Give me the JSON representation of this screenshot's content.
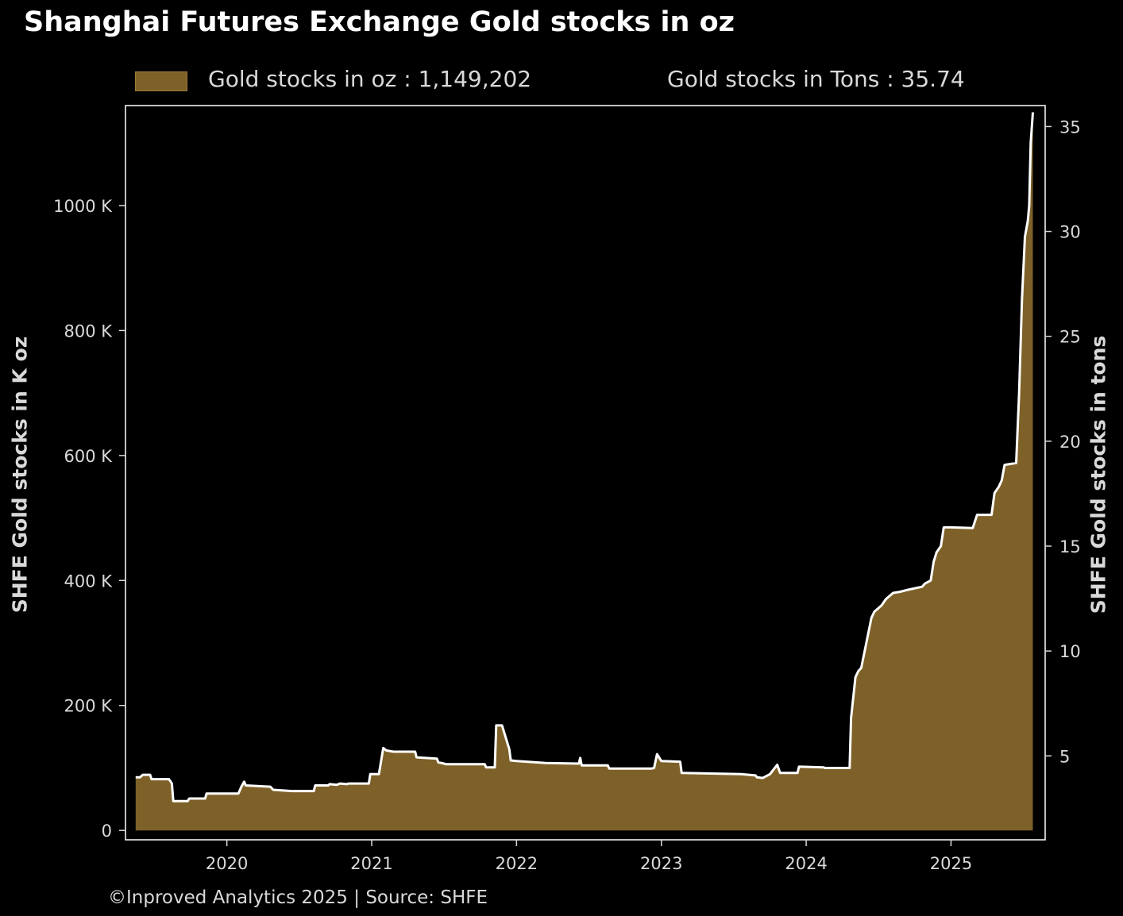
{
  "title": "Shanghai Futures Exchange Gold stocks in oz",
  "legend": {
    "oz_label": "Gold stocks in oz : 1,149,202",
    "tons_label": "Gold stocks in Tons : 35.74"
  },
  "footer": {
    "source": "©Inproved Analytics 2025 | Source: SHFE"
  },
  "colors": {
    "background": "#000000",
    "fill": "#7d6128",
    "line": "#ffffff",
    "text": "#d9d9d9"
  },
  "chart_data": {
    "type": "area",
    "title": "Shanghai Futures Exchange Gold stocks in oz",
    "ylabel": "SHFE Gold stocks in K oz",
    "ylabel_right": "SHFE Gold stocks in tons",
    "ylim": [
      -15000,
      1160000
    ],
    "ylim_right": [
      1.0,
      36.0
    ],
    "xlim": [
      2019.3,
      2025.65
    ],
    "x_ticks": [
      2020,
      2021,
      2022,
      2023,
      2024,
      2025
    ],
    "x_tick_labels": [
      "2020",
      "2021",
      "2022",
      "2023",
      "2024",
      "2025"
    ],
    "y_ticks": [
      0,
      200000,
      400000,
      600000,
      800000,
      1000000
    ],
    "y_tick_labels": [
      "0",
      "200 K",
      "400 K",
      "600 K",
      "800 K",
      "1000 K"
    ],
    "y_right_ticks": [
      5,
      10,
      15,
      20,
      25,
      30,
      35
    ],
    "y_right_tick_labels": [
      "5",
      "10",
      "15",
      "20",
      "25",
      "30",
      "35"
    ],
    "grid": false,
    "legend_position": "top",
    "series": [
      {
        "name": "Gold stocks in oz",
        "x": [
          2019.37,
          2019.4,
          2019.42,
          2019.47,
          2019.48,
          2019.55,
          2019.6,
          2019.62,
          2019.63,
          2019.73,
          2019.74,
          2019.85,
          2019.86,
          2020.08,
          2020.1,
          2020.12,
          2020.13,
          2020.3,
          2020.32,
          2020.45,
          2020.46,
          2020.6,
          2020.61,
          2020.7,
          2020.71,
          2020.76,
          2020.78,
          2020.83,
          2020.84,
          2020.98,
          2020.99,
          2021.05,
          2021.08,
          2021.1,
          2021.15,
          2021.3,
          2021.31,
          2021.45,
          2021.46,
          2021.5,
          2021.51,
          2021.78,
          2021.79,
          2021.85,
          2021.86,
          2021.9,
          2021.95,
          2021.96,
          2022.0,
          2022.2,
          2022.43,
          2022.44,
          2022.45,
          2022.63,
          2022.64,
          2022.93,
          2022.95,
          2022.97,
          2023.0,
          2023.13,
          2023.14,
          2023.55,
          2023.65,
          2023.66,
          2023.7,
          2023.75,
          2023.8,
          2023.82,
          2023.94,
          2023.95,
          2024.12,
          2024.13,
          2024.3,
          2024.31,
          2024.34,
          2024.36,
          2024.38,
          2024.45,
          2024.47,
          2024.52,
          2024.55,
          2024.6,
          2024.65,
          2024.7,
          2024.8,
          2024.82,
          2024.86,
          2024.88,
          2024.9,
          2024.93,
          2024.95,
          2025.0,
          2025.15,
          2025.18,
          2025.28,
          2025.3,
          2025.33,
          2025.35,
          2025.37,
          2025.45,
          2025.47,
          2025.49,
          2025.51,
          2025.53,
          2025.54,
          2025.55,
          2025.565
        ],
        "values": [
          85000,
          85000,
          89000,
          89000,
          82000,
          82000,
          82000,
          75000,
          47000,
          47000,
          51000,
          51000,
          59000,
          59000,
          70000,
          78000,
          72000,
          70000,
          65000,
          63000,
          63000,
          63000,
          72000,
          72000,
          74000,
          73000,
          75000,
          74000,
          75000,
          75000,
          90000,
          90000,
          132000,
          128000,
          126000,
          126000,
          117000,
          115000,
          109000,
          107000,
          106000,
          106000,
          101000,
          101000,
          168000,
          168000,
          130000,
          112000,
          111000,
          108000,
          107000,
          116000,
          104000,
          104000,
          99000,
          99000,
          100000,
          122000,
          111000,
          110000,
          92000,
          90000,
          88000,
          85000,
          84000,
          90000,
          105000,
          92000,
          92000,
          102000,
          101000,
          100000,
          100000,
          180000,
          245000,
          255000,
          260000,
          340000,
          350000,
          360000,
          370000,
          380000,
          382000,
          385000,
          390000,
          395000,
          400000,
          430000,
          445000,
          455000,
          485000,
          485000,
          484000,
          505000,
          505000,
          540000,
          550000,
          560000,
          585000,
          588000,
          700000,
          850000,
          950000,
          975000,
          1000000,
          1100000,
          1149202
        ]
      }
    ]
  }
}
